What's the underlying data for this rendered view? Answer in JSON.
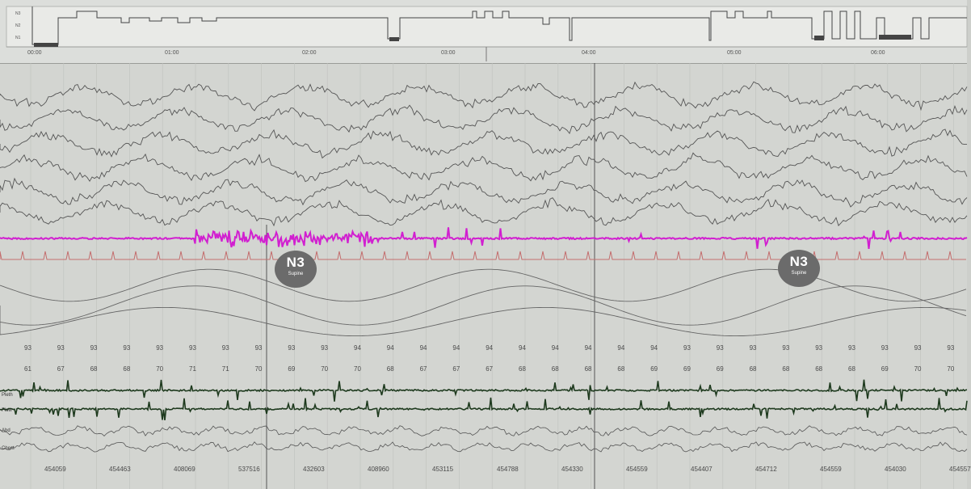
{
  "timeline": {
    "labels": [
      "00:00",
      "01:00",
      "02:00",
      "03:00",
      "04:00",
      "05:00",
      "06:00"
    ]
  },
  "hypnogram": {
    "labels": [
      "N3",
      "N2",
      "N1"
    ]
  },
  "stage_markers": [
    {
      "stage": "N3",
      "position": "Supine"
    },
    {
      "stage": "N3",
      "position": "Supine"
    }
  ],
  "spo2_values": [
    "93",
    "93",
    "93",
    "93",
    "93",
    "93",
    "93",
    "93",
    "93",
    "93",
    "94",
    "94",
    "94",
    "94",
    "94",
    "94",
    "94",
    "94",
    "94",
    "94",
    "93",
    "93",
    "93",
    "93",
    "93",
    "93",
    "93",
    "93",
    "93"
  ],
  "pulse_values": [
    "61",
    "67",
    "68",
    "68",
    "70",
    "71",
    "71",
    "70",
    "69",
    "70",
    "70",
    "68",
    "67",
    "67",
    "67",
    "68",
    "68",
    "68",
    "68",
    "69",
    "69",
    "69",
    "68",
    "68",
    "68",
    "68",
    "69",
    "70",
    "70"
  ],
  "counter_values": [
    "454059",
    "454463",
    "408069",
    "537516",
    "432603",
    "408960",
    "453115",
    "454788",
    "454330",
    "454559",
    "454407",
    "454712",
    "454559",
    "454030",
    "454557"
  ],
  "channel_labels": [
    "Pleth",
    "Flow",
    "Abd",
    "Chest"
  ],
  "colors": {
    "emg": "#d11fd0",
    "ecg": "#c46e6e",
    "eeg": "#555555",
    "leg": "#1e3a1e"
  }
}
